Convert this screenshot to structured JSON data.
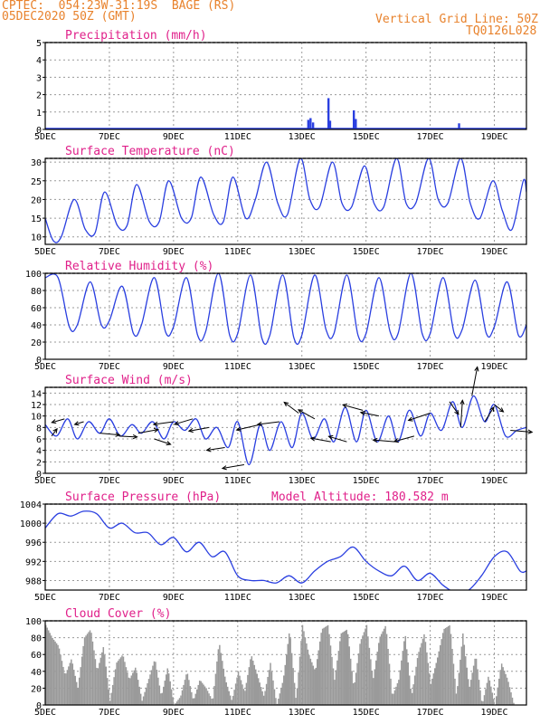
{
  "header": {
    "line1": "CPTEC:  054:23W-31:19S  BAGE (RS)",
    "line2": "05DEC2020 50Z (GMT)",
    "right1": "Vertical Grid Line: 50Z",
    "right2": "TQ0126L028"
  },
  "colors": {
    "header": "#e8822c",
    "title": "#e0208a",
    "series": "#2a3fe0",
    "cloud": "#9a9a9a",
    "grid": "#9a9a9a"
  },
  "x_ticks": [
    "5DEC",
    "7DEC",
    "9DEC",
    "11DEC",
    "13DEC",
    "15DEC",
    "17DEC",
    "19DEC"
  ],
  "chart_data": [
    {
      "id": "precip",
      "type": "bar",
      "title": "Precipitation (mm/h)",
      "ylim": [
        0,
        5
      ],
      "yticks": [
        0,
        1,
        2,
        3,
        4,
        5
      ],
      "x_range_days": [
        5,
        20
      ],
      "bars": [
        {
          "x": 13.2,
          "y": 0.55
        },
        {
          "x": 13.27,
          "y": 0.65
        },
        {
          "x": 13.35,
          "y": 0.4
        },
        {
          "x": 13.83,
          "y": 1.8
        },
        {
          "x": 13.88,
          "y": 0.5
        },
        {
          "x": 14.62,
          "y": 1.1
        },
        {
          "x": 14.68,
          "y": 0.6
        },
        {
          "x": 17.9,
          "y": 0.35
        }
      ]
    },
    {
      "id": "temp",
      "type": "line",
      "title": "Surface Temperature (nC)",
      "ylim": [
        8,
        31
      ],
      "yticks": [
        10,
        15,
        20,
        25,
        30
      ],
      "x_range_days": [
        5,
        20
      ],
      "x": [
        5.0,
        5.25,
        5.5,
        5.9,
        6.25,
        6.55,
        6.85,
        7.25,
        7.55,
        7.85,
        8.25,
        8.55,
        8.85,
        9.25,
        9.55,
        9.85,
        10.25,
        10.55,
        10.85,
        11.25,
        11.55,
        11.9,
        12.25,
        12.55,
        12.95,
        13.25,
        13.55,
        13.95,
        14.25,
        14.55,
        14.95,
        15.25,
        15.55,
        15.95,
        16.25,
        16.55,
        16.95,
        17.25,
        17.55,
        17.95,
        18.25,
        18.55,
        18.95,
        19.25,
        19.55,
        19.9,
        20.0
      ],
      "y": [
        15.0,
        9.0,
        10.0,
        20.0,
        12.0,
        11.0,
        22.0,
        13.0,
        13.0,
        24.0,
        14.0,
        14.0,
        25.0,
        15.0,
        15.0,
        26.0,
        16.0,
        14.0,
        26.0,
        15.0,
        20.0,
        30.0,
        19.0,
        16.0,
        31.0,
        20.0,
        18.0,
        30.0,
        19.0,
        18.0,
        29.0,
        19.0,
        18.0,
        31.0,
        19.0,
        19.0,
        31.0,
        20.0,
        19.0,
        31.0,
        19.0,
        15.0,
        25.0,
        17.0,
        12.0,
        25.0,
        22.0
      ]
    },
    {
      "id": "rh",
      "type": "line",
      "title": "Relative Humidity (%)",
      "ylim": [
        0,
        100
      ],
      "yticks": [
        0,
        20,
        40,
        60,
        80,
        100
      ],
      "x_range_days": [
        5,
        20
      ],
      "x": [
        5.0,
        5.4,
        5.75,
        6.0,
        6.4,
        6.75,
        7.0,
        7.4,
        7.75,
        8.0,
        8.4,
        8.75,
        9.0,
        9.4,
        9.75,
        10.0,
        10.4,
        10.75,
        11.0,
        11.4,
        11.75,
        12.0,
        12.4,
        12.75,
        13.0,
        13.4,
        13.75,
        14.0,
        14.4,
        14.75,
        15.0,
        15.4,
        15.75,
        16.0,
        16.4,
        16.75,
        17.0,
        17.4,
        17.75,
        18.0,
        18.4,
        18.75,
        19.0,
        19.4,
        19.75,
        20.0
      ],
      "y": [
        95.0,
        95.0,
        38.0,
        40.0,
        90.0,
        40.0,
        45.0,
        85.0,
        30.0,
        40.0,
        95.0,
        32.0,
        38.0,
        95.0,
        28.0,
        32.0,
        100.0,
        28.0,
        30.0,
        98.0,
        25.0,
        28.0,
        98.0,
        25.0,
        28.0,
        98.0,
        35.0,
        30.0,
        98.0,
        28.0,
        30.0,
        95.0,
        32.0,
        30.0,
        100.0,
        30.0,
        30.0,
        95.0,
        30.0,
        35.0,
        92.0,
        30.0,
        38.0,
        90.0,
        28.0,
        40.0
      ]
    },
    {
      "id": "wind",
      "type": "line",
      "title": "Surface Wind (m/s)",
      "ylim": [
        0,
        15
      ],
      "yticks": [
        0,
        2,
        4,
        6,
        8,
        10,
        12,
        14
      ],
      "x_range_days": [
        5,
        20
      ],
      "x": [
        5.0,
        5.35,
        5.7,
        6.0,
        6.35,
        6.7,
        7.0,
        7.35,
        7.7,
        8.0,
        8.35,
        8.7,
        9.0,
        9.35,
        9.7,
        10.0,
        10.35,
        10.7,
        11.0,
        11.35,
        11.7,
        12.0,
        12.35,
        12.7,
        13.0,
        13.35,
        13.7,
        14.0,
        14.35,
        14.7,
        15.0,
        15.35,
        15.7,
        16.0,
        16.35,
        16.7,
        17.0,
        17.35,
        17.7,
        18.0,
        18.35,
        18.7,
        19.0,
        19.35,
        19.7,
        20.0
      ],
      "y": [
        8.5,
        6.5,
        9.5,
        6.0,
        9.0,
        7.0,
        9.5,
        6.5,
        8.5,
        7.0,
        9.0,
        6.0,
        9.0,
        7.5,
        9.5,
        6.0,
        8.0,
        4.5,
        9.0,
        1.5,
        8.5,
        4.0,
        9.0,
        4.5,
        10.5,
        6.0,
        9.5,
        5.5,
        11.5,
        5.5,
        11.0,
        5.5,
        10.0,
        5.5,
        11.0,
        6.5,
        10.5,
        7.5,
        12.5,
        8.0,
        13.5,
        9.0,
        12.0,
        6.5,
        7.5,
        8.0
      ],
      "arrows": [
        {
          "x": 5.2,
          "dx": 6,
          "dy": -8
        },
        {
          "x": 5.6,
          "dx": -14,
          "dy": 4
        },
        {
          "x": 6.2,
          "dx": -10,
          "dy": 3
        },
        {
          "x": 6.7,
          "dx": 22,
          "dy": 2
        },
        {
          "x": 7.3,
          "dx": 20,
          "dy": 1
        },
        {
          "x": 7.9,
          "dx": 22,
          "dy": -4
        },
        {
          "x": 8.4,
          "dx": 18,
          "dy": 6
        },
        {
          "x": 9.0,
          "dx": -22,
          "dy": 3
        },
        {
          "x": 9.6,
          "dx": -20,
          "dy": 6
        },
        {
          "x": 10.1,
          "dx": -22,
          "dy": 4
        },
        {
          "x": 10.6,
          "dx": -20,
          "dy": 3
        },
        {
          "x": 11.2,
          "dx": -24,
          "dy": 4
        },
        {
          "x": 11.7,
          "dx": -26,
          "dy": 6
        },
        {
          "x": 12.3,
          "dx": -24,
          "dy": 3
        },
        {
          "x": 12.9,
          "dx": -16,
          "dy": -12
        },
        {
          "x": 13.4,
          "dx": -18,
          "dy": -10
        },
        {
          "x": 13.9,
          "dx": -22,
          "dy": -4
        },
        {
          "x": 14.4,
          "dx": -20,
          "dy": -6
        },
        {
          "x": 14.9,
          "dx": -22,
          "dy": -6
        },
        {
          "x": 15.4,
          "dx": -20,
          "dy": -4
        },
        {
          "x": 15.9,
          "dx": -24,
          "dy": -2
        },
        {
          "x": 16.5,
          "dx": -22,
          "dy": 6
        },
        {
          "x": 17.0,
          "dx": -24,
          "dy": 8
        },
        {
          "x": 17.6,
          "dx": 10,
          "dy": 14
        },
        {
          "x": 17.95,
          "dx": 2,
          "dy": -30
        },
        {
          "x": 18.3,
          "dx": 6,
          "dy": -32
        },
        {
          "x": 18.7,
          "dx": 10,
          "dy": -16
        },
        {
          "x": 19.0,
          "dx": 10,
          "dy": 8
        },
        {
          "x": 19.5,
          "dx": 24,
          "dy": 2
        }
      ]
    },
    {
      "id": "pressure",
      "type": "line",
      "title": "Surface Pressure (hPa)",
      "annotation": "Model Altitude: 180.582 m",
      "ylim": [
        986,
        1004
      ],
      "yticks": [
        988,
        992,
        996,
        1000,
        1004
      ],
      "x_range_days": [
        5,
        20
      ],
      "x": [
        5.0,
        5.4,
        5.8,
        6.2,
        6.6,
        7.0,
        7.4,
        7.8,
        8.2,
        8.6,
        9.0,
        9.4,
        9.8,
        10.2,
        10.6,
        11.0,
        11.4,
        11.8,
        12.2,
        12.6,
        13.0,
        13.4,
        13.8,
        14.2,
        14.6,
        15.0,
        15.4,
        15.8,
        16.2,
        16.6,
        17.0,
        17.4,
        17.8,
        18.2,
        18.6,
        19.0,
        19.4,
        19.8,
        20.0
      ],
      "y": [
        999.0,
        1002.0,
        1001.5,
        1002.5,
        1002.0,
        999.0,
        1000.0,
        998.0,
        998.0,
        995.5,
        997.0,
        994.0,
        996.0,
        993.0,
        994.0,
        989.0,
        988.0,
        988.0,
        987.5,
        989.0,
        987.5,
        990.0,
        992.0,
        993.0,
        995.0,
        992.0,
        990.0,
        989.0,
        991.0,
        988.0,
        989.5,
        987.0,
        985.5,
        986.0,
        989.0,
        993.0,
        994.0,
        990.0,
        990.0
      ]
    },
    {
      "id": "cloud",
      "type": "area",
      "title": "Cloud Cover (%)",
      "ylim": [
        0,
        100
      ],
      "yticks": [
        0,
        20,
        40,
        60,
        80,
        100
      ],
      "x_range_days": [
        5,
        20
      ],
      "x": [
        5.0,
        5.2,
        5.4,
        5.6,
        5.8,
        6.0,
        6.2,
        6.4,
        6.6,
        6.8,
        7.0,
        7.2,
        7.4,
        7.6,
        7.8,
        8.0,
        8.2,
        8.4,
        8.6,
        8.8,
        9.0,
        9.2,
        9.4,
        9.6,
        9.8,
        10.0,
        10.2,
        10.4,
        10.6,
        10.8,
        11.0,
        11.2,
        11.4,
        11.6,
        11.8,
        12.0,
        12.2,
        12.4,
        12.6,
        12.8,
        13.0,
        13.2,
        13.4,
        13.6,
        13.8,
        14.0,
        14.2,
        14.4,
        14.6,
        14.8,
        15.0,
        15.2,
        15.4,
        15.6,
        15.8,
        16.0,
        16.2,
        16.4,
        16.6,
        16.8,
        17.0,
        17.2,
        17.4,
        17.6,
        17.8,
        18.0,
        18.2,
        18.4,
        18.6,
        18.8,
        19.0,
        19.2,
        19.4,
        19.6,
        19.8,
        20.0
      ],
      "y": [
        95,
        80,
        70,
        35,
        55,
        20,
        80,
        90,
        40,
        70,
        5,
        50,
        60,
        30,
        45,
        5,
        30,
        55,
        10,
        45,
        0,
        10,
        40,
        5,
        30,
        20,
        5,
        75,
        30,
        5,
        40,
        15,
        60,
        35,
        10,
        50,
        0,
        30,
        90,
        5,
        95,
        60,
        40,
        90,
        95,
        30,
        85,
        90,
        20,
        75,
        95,
        30,
        80,
        95,
        10,
        30,
        85,
        10,
        60,
        85,
        25,
        55,
        90,
        95,
        10,
        85,
        20,
        60,
        0,
        35,
        0,
        50,
        30,
        0,
        0,
        0
      ]
    }
  ]
}
